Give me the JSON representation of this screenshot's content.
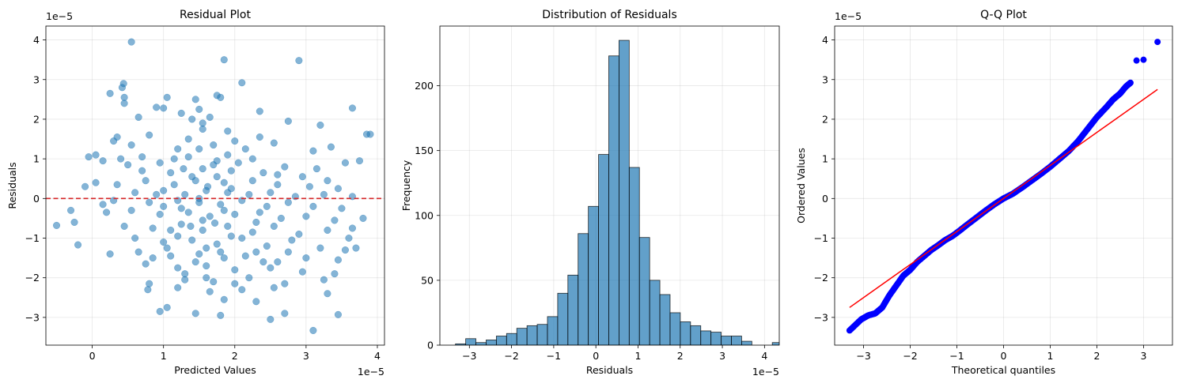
{
  "chart_data": [
    {
      "type": "scatter",
      "title": "Residual Plot",
      "xlabel": "Predicted Values",
      "ylabel": "Residuals",
      "x_offset_text": "1e−5",
      "y_offset_text": "1e−5",
      "xlim": [
        -0.65,
        4.1
      ],
      "ylim": [
        -3.7,
        4.35
      ],
      "xticks": [
        0,
        1,
        2,
        3,
        4
      ],
      "yticks": [
        -3,
        -2,
        -1,
        0,
        1,
        2,
        3,
        4
      ],
      "grid": true,
      "color": "#1f77b4",
      "reference_line": {
        "y": 0,
        "color": "#d62728",
        "style": "dashed"
      },
      "points": [
        [
          0.55,
          3.95
        ],
        [
          1.85,
          3.5
        ],
        [
          2.9,
          3.48
        ],
        [
          2.1,
          2.92
        ],
        [
          0.42,
          2.8
        ],
        [
          0.44,
          2.9
        ],
        [
          0.25,
          2.65
        ],
        [
          0.45,
          2.55
        ],
        [
          1.05,
          2.55
        ],
        [
          1.75,
          2.6
        ],
        [
          1.8,
          2.55
        ],
        [
          1.45,
          2.5
        ],
        [
          0.45,
          2.4
        ],
        [
          3.65,
          2.28
        ],
        [
          0.9,
          2.3
        ],
        [
          1.0,
          2.28
        ],
        [
          1.5,
          2.25
        ],
        [
          2.35,
          2.2
        ],
        [
          0.65,
          2.05
        ],
        [
          1.25,
          2.15
        ],
        [
          2.75,
          1.95
        ],
        [
          3.2,
          1.85
        ],
        [
          3.85,
          1.62
        ],
        [
          0.55,
          1.35
        ],
        [
          0.8,
          1.6
        ],
        [
          1.55,
          1.75
        ],
        [
          2.55,
          1.4
        ],
        [
          3.35,
          1.3
        ],
        [
          0.3,
          1.45
        ],
        [
          1.9,
          1.7
        ],
        [
          0.35,
          1.55
        ],
        [
          0.05,
          1.1
        ],
        [
          -0.05,
          1.05
        ],
        [
          2.0,
          1.45
        ],
        [
          3.1,
          1.2
        ],
        [
          1.2,
          1.25
        ],
        [
          0.15,
          0.95
        ],
        [
          0.5,
          0.85
        ],
        [
          0.95,
          0.9
        ],
        [
          1.35,
          1.05
        ],
        [
          1.75,
          0.95
        ],
        [
          2.25,
          1.0
        ],
        [
          2.7,
          0.8
        ],
        [
          3.55,
          0.9
        ],
        [
          3.75,
          0.95
        ],
        [
          0.7,
          0.7
        ],
        [
          1.1,
          0.65
        ],
        [
          1.55,
          0.75
        ],
        [
          1.95,
          0.7
        ],
        [
          2.4,
          0.65
        ],
        [
          2.95,
          0.55
        ],
        [
          3.3,
          0.45
        ],
        [
          0.05,
          0.4
        ],
        [
          0.35,
          0.35
        ],
        [
          0.75,
          0.45
        ],
        [
          1.15,
          0.35
        ],
        [
          1.45,
          0.45
        ],
        [
          1.85,
          0.4
        ],
        [
          2.25,
          0.45
        ],
        [
          2.6,
          0.35
        ],
        [
          3.05,
          0.3
        ],
        [
          3.45,
          0.25
        ],
        [
          -0.1,
          0.3
        ],
        [
          0.6,
          0.15
        ],
        [
          1.0,
          0.2
        ],
        [
          1.3,
          0.1
        ],
        [
          1.6,
          0.2
        ],
        [
          1.9,
          0.15
        ],
        [
          2.2,
          0.1
        ],
        [
          2.5,
          0.15
        ],
        [
          2.85,
          0.05
        ],
        [
          3.25,
          0.1
        ],
        [
          3.65,
          0.05
        ],
        [
          0.3,
          -0.05
        ],
        [
          0.8,
          -0.1
        ],
        [
          1.2,
          -0.05
        ],
        [
          1.5,
          -0.1
        ],
        [
          1.8,
          -0.15
        ],
        [
          2.1,
          -0.05
        ],
        [
          2.45,
          -0.2
        ],
        [
          2.75,
          -0.1
        ],
        [
          3.1,
          -0.2
        ],
        [
          3.5,
          -0.25
        ],
        [
          -0.3,
          -0.3
        ],
        [
          0.2,
          -0.35
        ],
        [
          0.55,
          -0.3
        ],
        [
          0.95,
          -0.4
        ],
        [
          1.35,
          -0.35
        ],
        [
          1.65,
          -0.45
        ],
        [
          2.0,
          -0.4
        ],
        [
          2.35,
          -0.35
        ],
        [
          2.65,
          -0.5
        ],
        [
          3.0,
          -0.45
        ],
        [
          3.4,
          -0.55
        ],
        [
          3.8,
          -0.5
        ],
        [
          -0.5,
          -0.68
        ],
        [
          -0.25,
          -0.6
        ],
        [
          0.45,
          -0.7
        ],
        [
          0.85,
          -0.75
        ],
        [
          1.25,
          -0.65
        ],
        [
          1.55,
          -0.8
        ],
        [
          1.9,
          -0.7
        ],
        [
          2.25,
          -0.85
        ],
        [
          2.55,
          -0.7
        ],
        [
          2.9,
          -0.9
        ],
        [
          3.3,
          -0.8
        ],
        [
          3.65,
          -0.75
        ],
        [
          0.6,
          -1.0
        ],
        [
          1.0,
          -1.1
        ],
        [
          1.4,
          -1.05
        ],
        [
          1.75,
          -1.15
        ],
        [
          2.1,
          -1.0
        ],
        [
          2.45,
          -1.2
        ],
        [
          2.8,
          -1.05
        ],
        [
          3.2,
          -1.25
        ],
        [
          3.55,
          -1.3
        ],
        [
          -0.2,
          -1.17
        ],
        [
          0.25,
          -1.4
        ],
        [
          0.65,
          -1.35
        ],
        [
          1.1,
          -1.45
        ],
        [
          1.5,
          -1.4
        ],
        [
          1.85,
          -1.5
        ],
        [
          2.3,
          -1.35
        ],
        [
          2.6,
          -1.6
        ],
        [
          3.0,
          -1.5
        ],
        [
          3.45,
          -1.55
        ],
        [
          3.7,
          -1.25
        ],
        [
          0.75,
          -1.65
        ],
        [
          1.2,
          -1.75
        ],
        [
          1.6,
          -1.7
        ],
        [
          2.0,
          -1.8
        ],
        [
          2.5,
          -1.75
        ],
        [
          2.95,
          -1.85
        ],
        [
          3.4,
          -1.9
        ],
        [
          0.8,
          -2.15
        ],
        [
          1.3,
          -2.05
        ],
        [
          1.7,
          -2.1
        ],
        [
          2.2,
          -2.0
        ],
        [
          2.7,
          -2.15
        ],
        [
          3.25,
          -2.05
        ],
        [
          0.78,
          -2.3
        ],
        [
          1.2,
          -2.25
        ],
        [
          1.65,
          -2.35
        ],
        [
          2.1,
          -2.3
        ],
        [
          2.55,
          -2.25
        ],
        [
          3.3,
          -2.4
        ],
        [
          1.05,
          -2.75
        ],
        [
          1.45,
          -2.9
        ],
        [
          1.85,
          -2.55
        ],
        [
          2.3,
          -2.6
        ],
        [
          2.7,
          -2.9
        ],
        [
          1.8,
          -2.95
        ],
        [
          2.5,
          -3.05
        ],
        [
          3.1,
          -3.33
        ],
        [
          3.45,
          -2.93
        ],
        [
          0.95,
          -2.85
        ],
        [
          1.25,
          -0.25
        ],
        [
          1.4,
          0.55
        ],
        [
          1.55,
          -0.55
        ],
        [
          1.7,
          0.85
        ],
        [
          1.6,
          -1.25
        ],
        [
          1.35,
          1.5
        ],
        [
          1.95,
          -0.95
        ],
        [
          1.1,
          -0.8
        ],
        [
          1.45,
          -1.6
        ],
        [
          1.7,
          1.35
        ],
        [
          1.85,
          -0.3
        ],
        [
          2.05,
          0.9
        ],
        [
          1.0,
          -0.2
        ],
        [
          1.5,
          0.0
        ],
        [
          1.62,
          0.3
        ],
        [
          1.38,
          -0.7
        ],
        [
          1.72,
          -0.62
        ],
        [
          1.28,
          0.75
        ],
        [
          1.9,
          1.1
        ],
        [
          2.3,
          -0.6
        ],
        [
          0.9,
          0.1
        ],
        [
          1.15,
          1.0
        ],
        [
          1.8,
          -1.35
        ],
        [
          1.55,
          1.9
        ],
        [
          2.15,
          1.25
        ],
        [
          1.65,
          2.05
        ],
        [
          2.4,
          -1.6
        ],
        [
          1.3,
          -1.9
        ],
        [
          0.85,
          -1.5
        ],
        [
          2.15,
          -1.45
        ],
        [
          1.5,
          1.25
        ],
        [
          1.95,
          0.25
        ],
        [
          1.05,
          -1.25
        ],
        [
          2.6,
          0.6
        ],
        [
          2.0,
          -2.15
        ],
        [
          1.4,
          2.0
        ],
        [
          1.2,
          -0.95
        ],
        [
          1.75,
          0.55
        ],
        [
          1.6,
          -2.0
        ],
        [
          2.35,
          1.55
        ],
        [
          0.7,
          1.05
        ],
        [
          2.75,
          -1.35
        ],
        [
          3.15,
          0.75
        ],
        [
          0.4,
          1.0
        ],
        [
          3.6,
          -1.0
        ],
        [
          0.15,
          -0.15
        ],
        [
          3.9,
          1.62
        ]
      ]
    },
    {
      "type": "bar",
      "title": "Distribution of Residuals",
      "xlabel": "Residuals",
      "ylabel": "Frequency",
      "x_offset_text": "1e−5",
      "xlim": [
        -3.7,
        4.35
      ],
      "ylim": [
        0,
        246
      ],
      "xticks": [
        -3,
        -2,
        -1,
        0,
        1,
        2,
        3,
        4
      ],
      "yticks": [
        0,
        50,
        100,
        150,
        200
      ],
      "grid": true,
      "color": "#1f77b4",
      "bin_start": -3.33,
      "bin_width": 0.2424,
      "values": [
        1,
        5,
        2,
        4,
        7,
        9,
        13,
        15,
        16,
        22,
        40,
        54,
        86,
        107,
        147,
        223,
        235,
        137,
        83,
        50,
        39,
        25,
        18,
        15,
        11,
        10,
        7,
        7,
        3,
        0,
        0,
        2,
        1
      ]
    },
    {
      "type": "scatter",
      "title": "Q-Q Plot",
      "xlabel": "Theoretical quantiles",
      "ylabel": "Ordered Values",
      "y_offset_text": "1e−5",
      "xlim": [
        -3.62,
        3.62
      ],
      "ylim": [
        -3.7,
        4.35
      ],
      "xticks": [
        -3,
        -2,
        -1,
        0,
        1,
        2,
        3
      ],
      "yticks": [
        -3,
        -2,
        -1,
        0,
        1,
        2,
        3,
        4
      ],
      "grid": true,
      "color": "#0000ff",
      "fit_line": {
        "x": [
          -3.3,
          3.3
        ],
        "y": [
          -2.75,
          2.75
        ],
        "color": "#ff0000"
      },
      "curve": [
        [
          -3.3,
          -3.33
        ],
        [
          -3.05,
          -3.05
        ],
        [
          -2.9,
          -2.95
        ],
        [
          -2.75,
          -2.9
        ],
        [
          -2.6,
          -2.75
        ],
        [
          -2.45,
          -2.45
        ],
        [
          -2.3,
          -2.2
        ],
        [
          -2.15,
          -1.95
        ],
        [
          -2.0,
          -1.8
        ],
        [
          -1.85,
          -1.6
        ],
        [
          -1.7,
          -1.45
        ],
        [
          -1.55,
          -1.3
        ],
        [
          -1.4,
          -1.18
        ],
        [
          -1.25,
          -1.05
        ],
        [
          -1.1,
          -0.95
        ],
        [
          -0.95,
          -0.82
        ],
        [
          -0.8,
          -0.68
        ],
        [
          -0.6,
          -0.5
        ],
        [
          -0.4,
          -0.32
        ],
        [
          -0.2,
          -0.15
        ],
        [
          0.0,
          0.0
        ],
        [
          0.2,
          0.12
        ],
        [
          0.4,
          0.28
        ],
        [
          0.6,
          0.45
        ],
        [
          0.8,
          0.62
        ],
        [
          1.0,
          0.8
        ],
        [
          1.2,
          1.0
        ],
        [
          1.4,
          1.2
        ],
        [
          1.6,
          1.45
        ],
        [
          1.8,
          1.75
        ],
        [
          2.0,
          2.05
        ],
        [
          2.2,
          2.3
        ],
        [
          2.35,
          2.5
        ],
        [
          2.5,
          2.65
        ],
        [
          2.62,
          2.82
        ],
        [
          2.72,
          2.92
        ]
      ],
      "outliers": [
        [
          2.85,
          3.48
        ],
        [
          3.0,
          3.5
        ],
        [
          3.3,
          3.95
        ]
      ]
    }
  ]
}
